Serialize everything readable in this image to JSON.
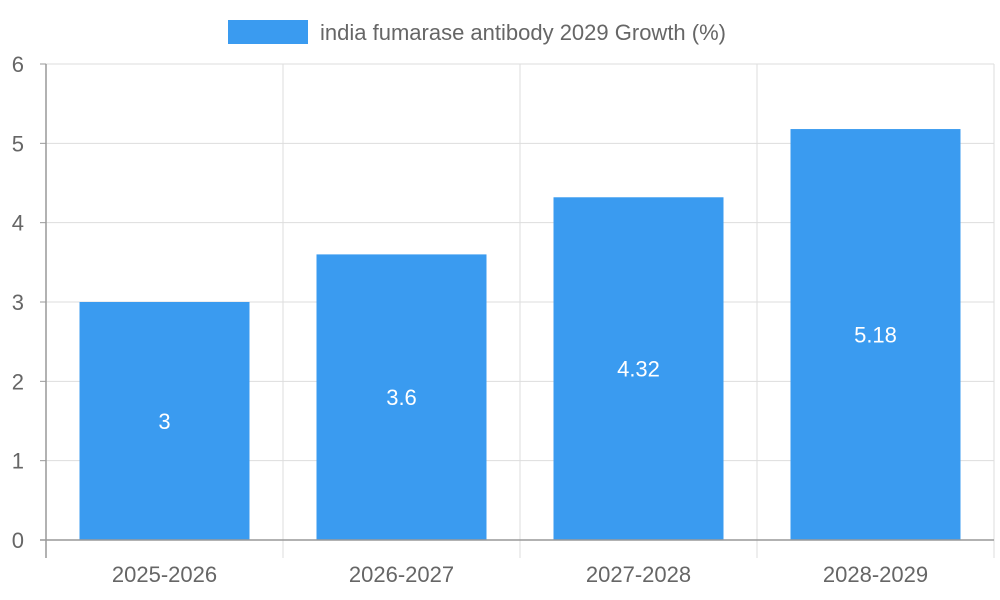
{
  "chart_data": {
    "type": "bar",
    "categories": [
      "2025-2026",
      "2026-2027",
      "2027-2028",
      "2028-2029"
    ],
    "series": [
      {
        "name": "india fumarase antibody 2029 Growth (%)",
        "values": [
          3,
          3.6,
          4.32,
          5.18
        ],
        "color": "#3a9bf0"
      }
    ],
    "data_labels": [
      "3",
      "3.6",
      "4.32",
      "5.18"
    ],
    "y_ticks": [
      "0",
      "1",
      "2",
      "3",
      "4",
      "5",
      "6"
    ],
    "ylim": [
      0,
      6
    ],
    "grid": true,
    "legend_position": "top-center",
    "grid_color": "#dddddd",
    "axis_color": "#999999",
    "text_color": "#666666"
  }
}
